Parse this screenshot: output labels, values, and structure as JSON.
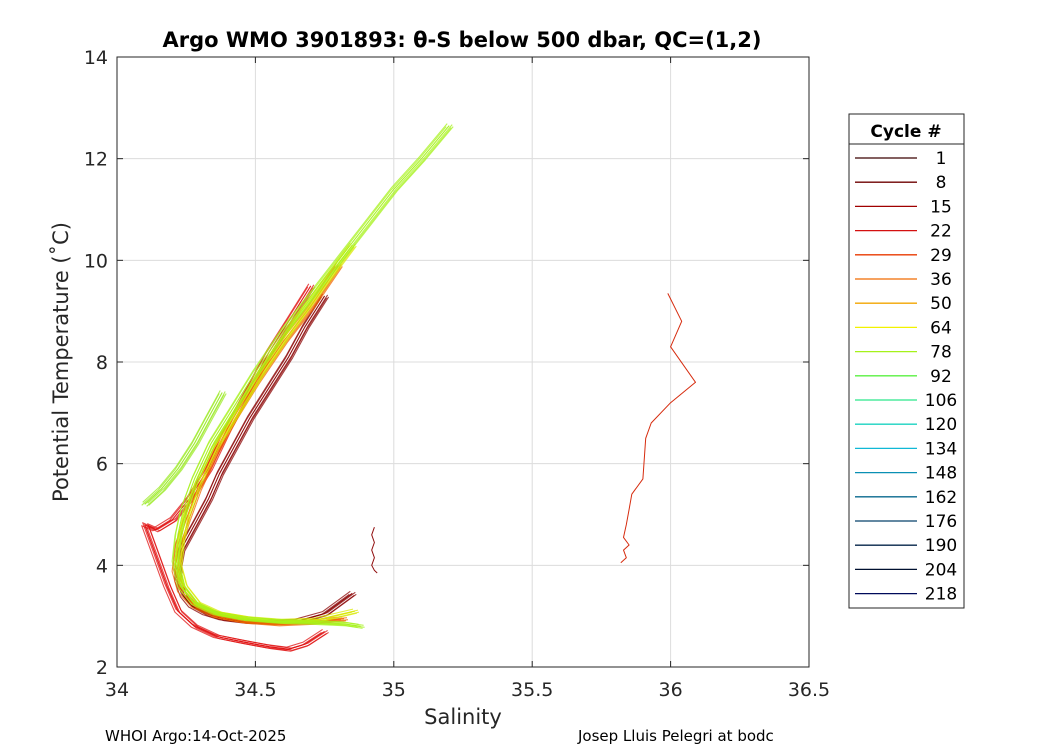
{
  "chart_data": {
    "type": "line",
    "title": "Argo WMO 3901893: θ-S below 500 dbar,  QC=(1,2)",
    "xlabel": "Salinity",
    "ylabel": "Potential Temperature (˚C)",
    "xlim": [
      34,
      36.5
    ],
    "ylim": [
      2,
      14
    ],
    "xticks": [
      34,
      34.5,
      35,
      35.5,
      36,
      36.5
    ],
    "xtick_labels": [
      "34",
      "34.5",
      "35",
      "35.5",
      "36",
      "36.5"
    ],
    "yticks": [
      2,
      4,
      6,
      8,
      10,
      12,
      14
    ],
    "ytick_labels": [
      "2",
      "4",
      "6",
      "8",
      "10",
      "12",
      "14"
    ],
    "grid": true,
    "legend": {
      "title": "Cycle #",
      "placement": "right",
      "entries": [
        {
          "label": "1",
          "color": "#3a0000"
        },
        {
          "label": "8",
          "color": "#6e0000"
        },
        {
          "label": "15",
          "color": "#a00000"
        },
        {
          "label": "22",
          "color": "#d41010"
        },
        {
          "label": "29",
          "color": "#e83a00"
        },
        {
          "label": "36",
          "color": "#f06a00"
        },
        {
          "label": "50",
          "color": "#f2a400"
        },
        {
          "label": "64",
          "color": "#f2f200"
        },
        {
          "label": "78",
          "color": "#a6f21a"
        },
        {
          "label": "92",
          "color": "#5af040"
        },
        {
          "label": "106",
          "color": "#2ae68a"
        },
        {
          "label": "120",
          "color": "#1ad2c0"
        },
        {
          "label": "134",
          "color": "#10b8d6"
        },
        {
          "label": "148",
          "color": "#0a90b4"
        },
        {
          "label": "162",
          "color": "#08688e"
        },
        {
          "label": "176",
          "color": "#06406a"
        },
        {
          "label": "190",
          "color": "#04244a"
        },
        {
          "label": "204",
          "color": "#001030"
        },
        {
          "label": "218",
          "color": "#000a5a"
        }
      ]
    },
    "series": [
      {
        "name": "band-dark-red",
        "color": "#8a0000",
        "x": [
          34.75,
          34.68,
          34.62,
          34.55,
          34.48,
          34.42,
          34.37,
          34.33,
          34.29,
          34.26,
          34.23,
          34.22,
          34.22,
          34.24,
          34.27,
          34.32,
          34.38,
          34.46,
          34.55,
          34.65,
          34.75,
          34.85
        ],
        "y": [
          9.3,
          8.7,
          8.1,
          7.5,
          6.9,
          6.3,
          5.8,
          5.3,
          4.9,
          4.6,
          4.3,
          4.0,
          3.7,
          3.4,
          3.2,
          3.05,
          2.95,
          2.9,
          2.88,
          2.9,
          3.05,
          3.45
        ]
      },
      {
        "name": "band-red",
        "color": "#e01010",
        "x": [
          34.7,
          34.62,
          34.55,
          34.48,
          34.4,
          34.33,
          34.26,
          34.2,
          34.14,
          34.1,
          34.14,
          34.18,
          34.22,
          34.28,
          34.36,
          34.45,
          34.55,
          34.62,
          34.68,
          34.75
        ],
        "y": [
          9.5,
          8.8,
          8.2,
          7.5,
          6.7,
          5.9,
          5.3,
          4.9,
          4.7,
          4.8,
          4.2,
          3.6,
          3.1,
          2.8,
          2.6,
          2.5,
          2.4,
          2.35,
          2.45,
          2.7
        ]
      },
      {
        "name": "band-orange",
        "color": "#f06a00",
        "x": [
          34.8,
          34.7,
          34.6,
          34.5,
          34.42,
          34.35,
          34.29,
          34.25,
          34.22,
          34.21,
          34.23,
          34.28,
          34.36,
          34.46,
          34.58,
          34.7,
          34.82
        ],
        "y": [
          9.9,
          9.1,
          8.4,
          7.6,
          6.9,
          6.2,
          5.5,
          4.9,
          4.4,
          3.9,
          3.5,
          3.2,
          3.0,
          2.9,
          2.85,
          2.88,
          2.95
        ]
      },
      {
        "name": "band-yellow",
        "color": "#d8e800",
        "x": [
          34.85,
          34.74,
          34.62,
          34.52,
          34.43,
          34.35,
          34.29,
          34.25,
          34.23,
          34.22,
          34.24,
          34.29,
          34.37,
          34.48,
          34.6,
          34.72,
          34.86
        ],
        "y": [
          10.3,
          9.5,
          8.6,
          7.8,
          7.0,
          6.3,
          5.6,
          5.0,
          4.5,
          4.0,
          3.6,
          3.25,
          3.05,
          2.95,
          2.9,
          2.92,
          3.1
        ]
      },
      {
        "name": "band-lime-upper",
        "color": "#a6f21a",
        "x": [
          35.2,
          35.1,
          35.0,
          34.9,
          34.8,
          34.7,
          34.6,
          34.5,
          34.42,
          34.34,
          34.28,
          34.24,
          34.22,
          34.21,
          34.23,
          34.28,
          34.36,
          34.46,
          34.58,
          34.7,
          34.82,
          34.88
        ],
        "y": [
          12.65,
          12.0,
          11.4,
          10.7,
          10.0,
          9.3,
          8.6,
          7.8,
          7.1,
          6.4,
          5.7,
          5.1,
          4.6,
          4.1,
          3.6,
          3.25,
          3.05,
          2.95,
          2.9,
          2.88,
          2.85,
          2.8
        ]
      },
      {
        "name": "band-lime-lower",
        "color": "#9aea22",
        "x": [
          34.1,
          34.16,
          34.22,
          34.28,
          34.33,
          34.38
        ],
        "y": [
          5.2,
          5.5,
          5.9,
          6.4,
          6.9,
          7.4
        ]
      },
      {
        "name": "isolated-dark-trace",
        "color": "#8a0000",
        "x": [
          34.93,
          34.92,
          34.93,
          34.92,
          34.93,
          34.92,
          34.93,
          34.94
        ],
        "y": [
          4.75,
          4.6,
          4.45,
          4.3,
          4.15,
          4.0,
          3.9,
          3.85
        ]
      },
      {
        "name": "isolated-red-trace",
        "color": "#d42000",
        "x": [
          35.99,
          36.04,
          36.0,
          36.09,
          36.0,
          35.93,
          35.91,
          35.9,
          35.86,
          35.85,
          35.84,
          35.83,
          35.85,
          35.83,
          35.84,
          35.82
        ],
        "y": [
          9.35,
          8.8,
          8.3,
          7.6,
          7.2,
          6.8,
          6.5,
          5.7,
          5.4,
          5.1,
          4.8,
          4.55,
          4.4,
          4.3,
          4.15,
          4.05
        ]
      }
    ],
    "footer": {
      "left": "WHOI Argo:14-Oct-2025",
      "right": "Josep Lluis Pelegri at bodc"
    }
  }
}
